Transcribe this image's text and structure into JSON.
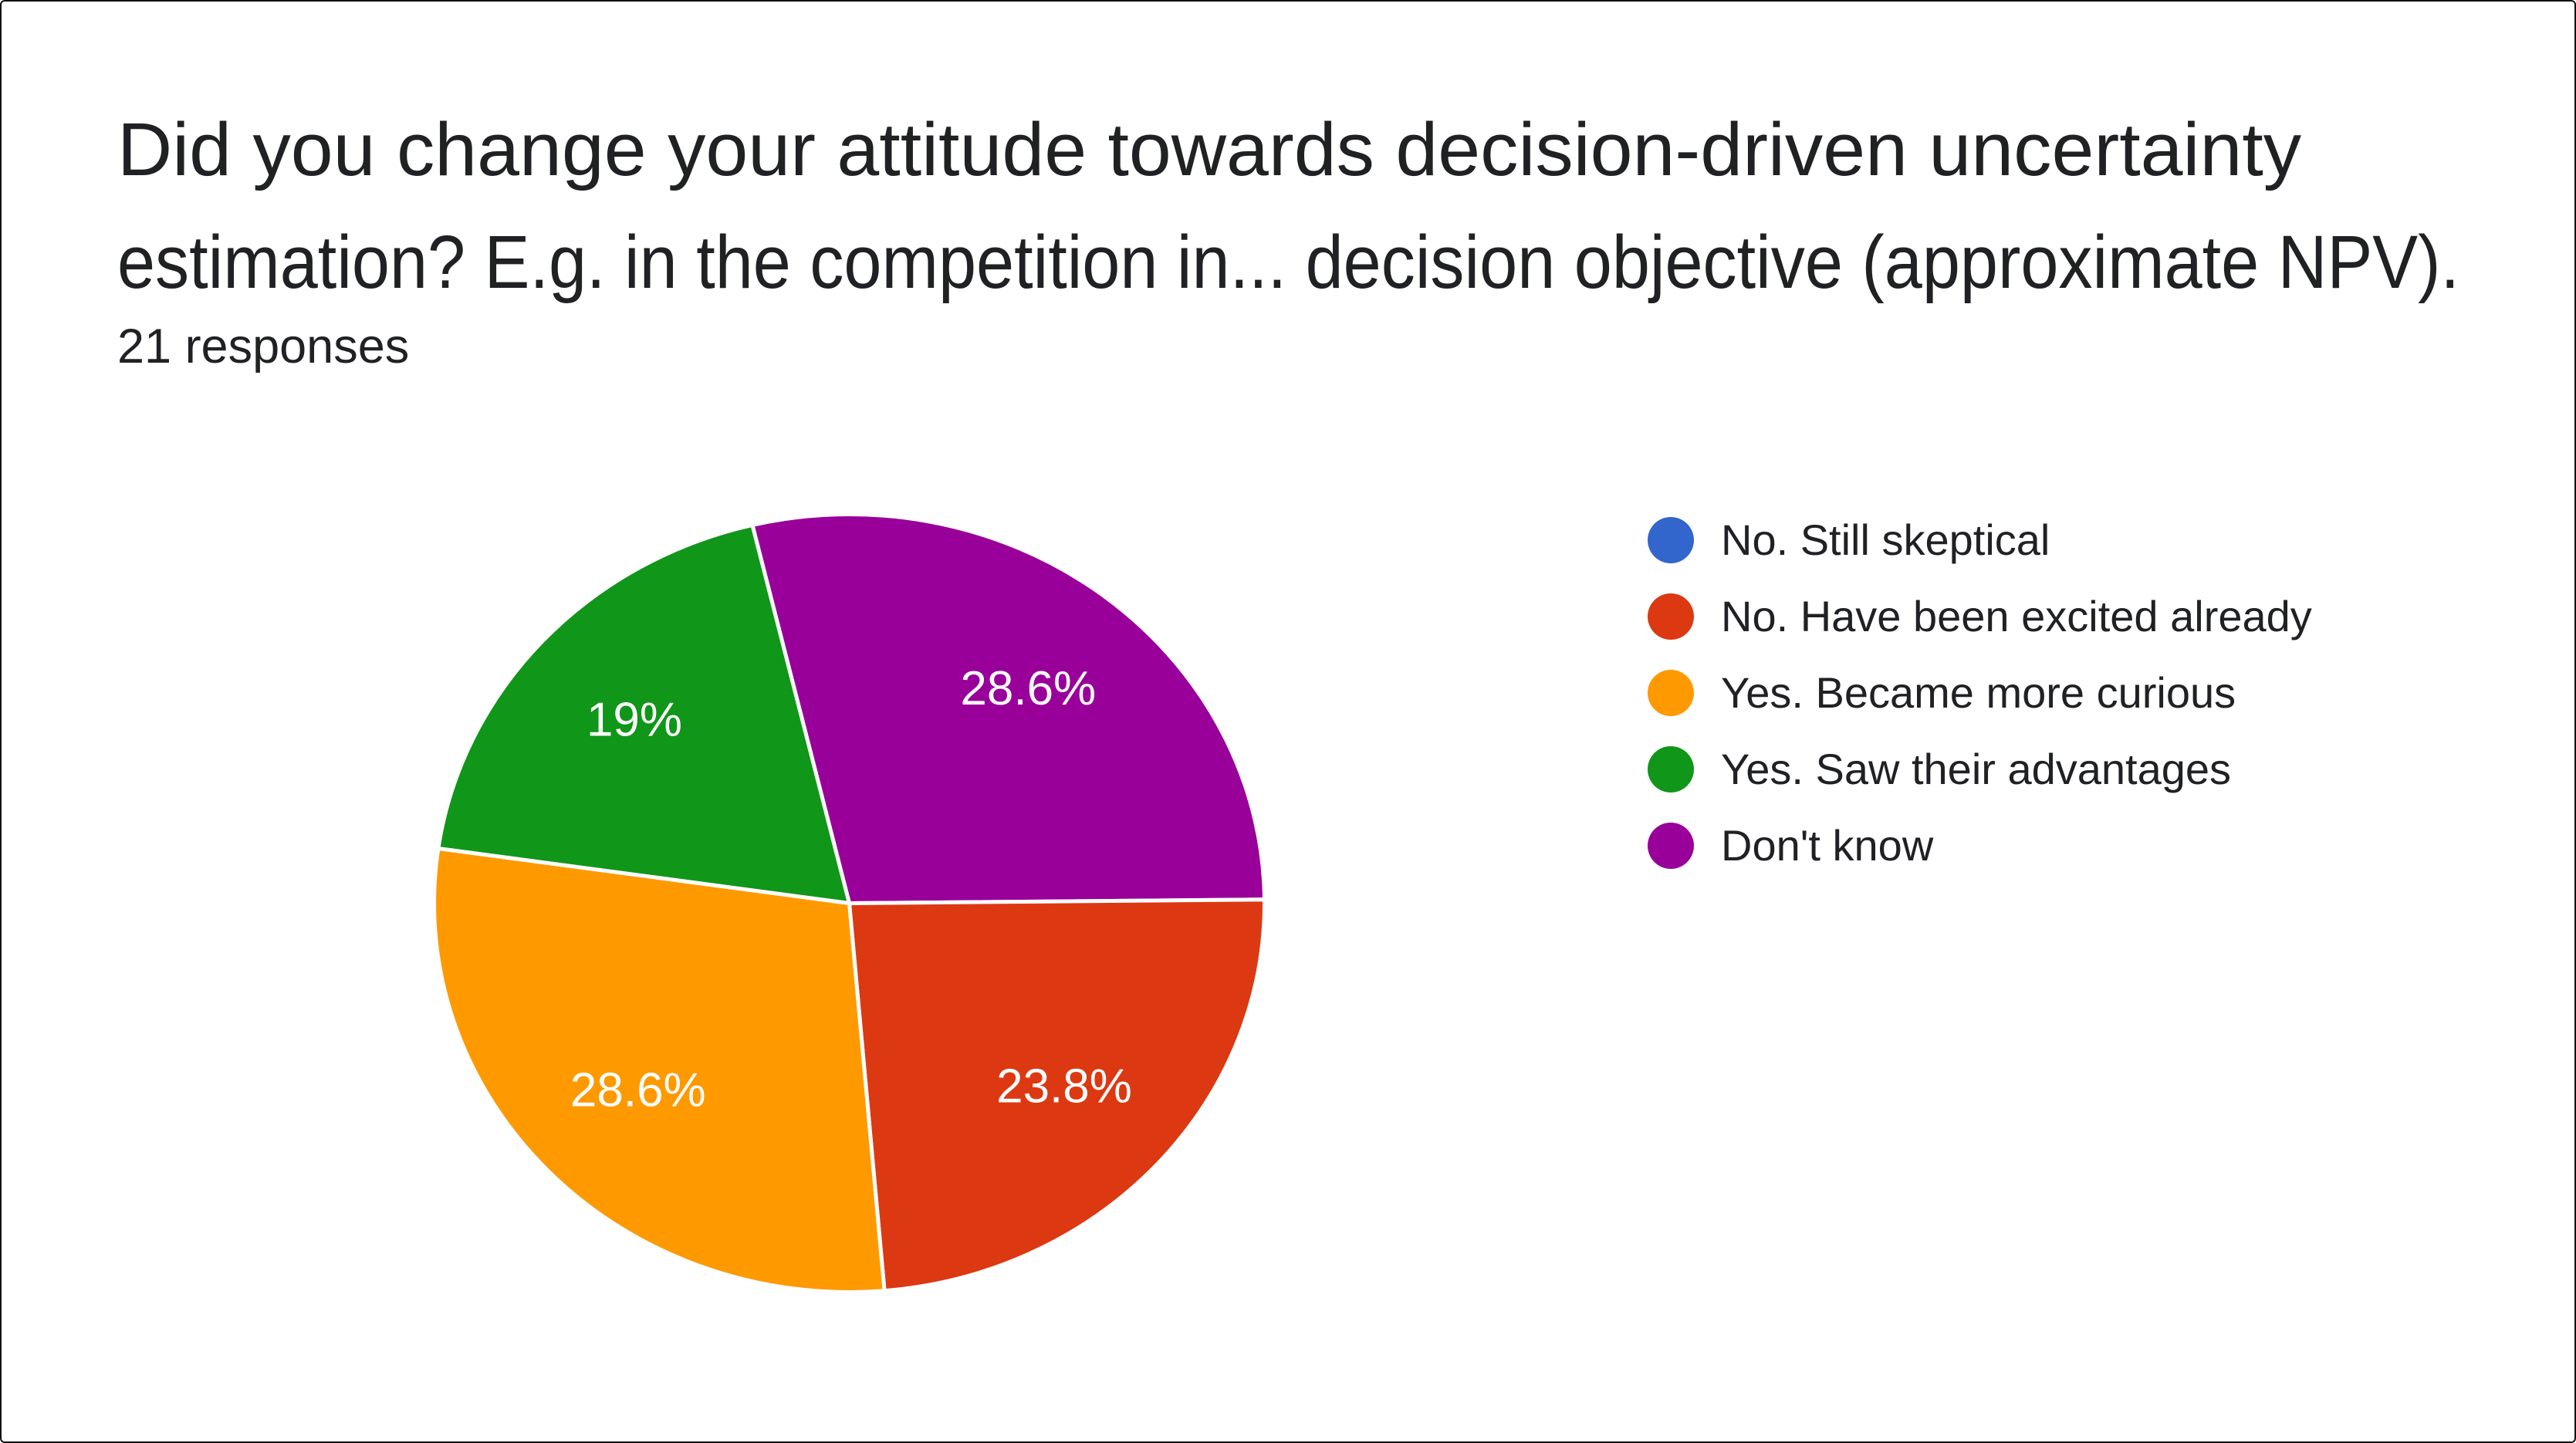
{
  "header": {
    "title_lines": [
      "Did you change your attitude towards decision-driven uncertainty",
      "estimation? E.g. in the competition in... decision objective (approximate NPV)."
    ],
    "responses_label": "21 responses"
  },
  "chart_data": {
    "type": "pie",
    "title": "Did you change your attitude towards decision-driven uncertainty estimation? E.g. in the competition in... decision objective (approximate NPV).",
    "subtitle": "21 responses",
    "legend_position": "right",
    "direction": "clockwise",
    "start_angle_deg": -13.5,
    "label_color": "#ffffff",
    "slice_border_color": "#ffffff",
    "slices": [
      {
        "label": "No. Still skeptical",
        "color": "#3366cc",
        "percent": 0,
        "percent_label": ""
      },
      {
        "label": "No. Have been excited already",
        "color": "#dc3912",
        "percent": 23.8,
        "percent_label": "23.8%"
      },
      {
        "label": "Yes. Became more curious",
        "color": "#ff9900",
        "percent": 28.6,
        "percent_label": "28.6%"
      },
      {
        "label": "Yes. Saw their advantages",
        "color": "#109618",
        "percent": 19,
        "percent_label": "19%"
      },
      {
        "label": "Don't know",
        "color": "#990099",
        "percent": 28.6,
        "percent_label": "28.6%"
      }
    ],
    "draw_order": [
      4,
      1,
      2,
      3
    ]
  }
}
